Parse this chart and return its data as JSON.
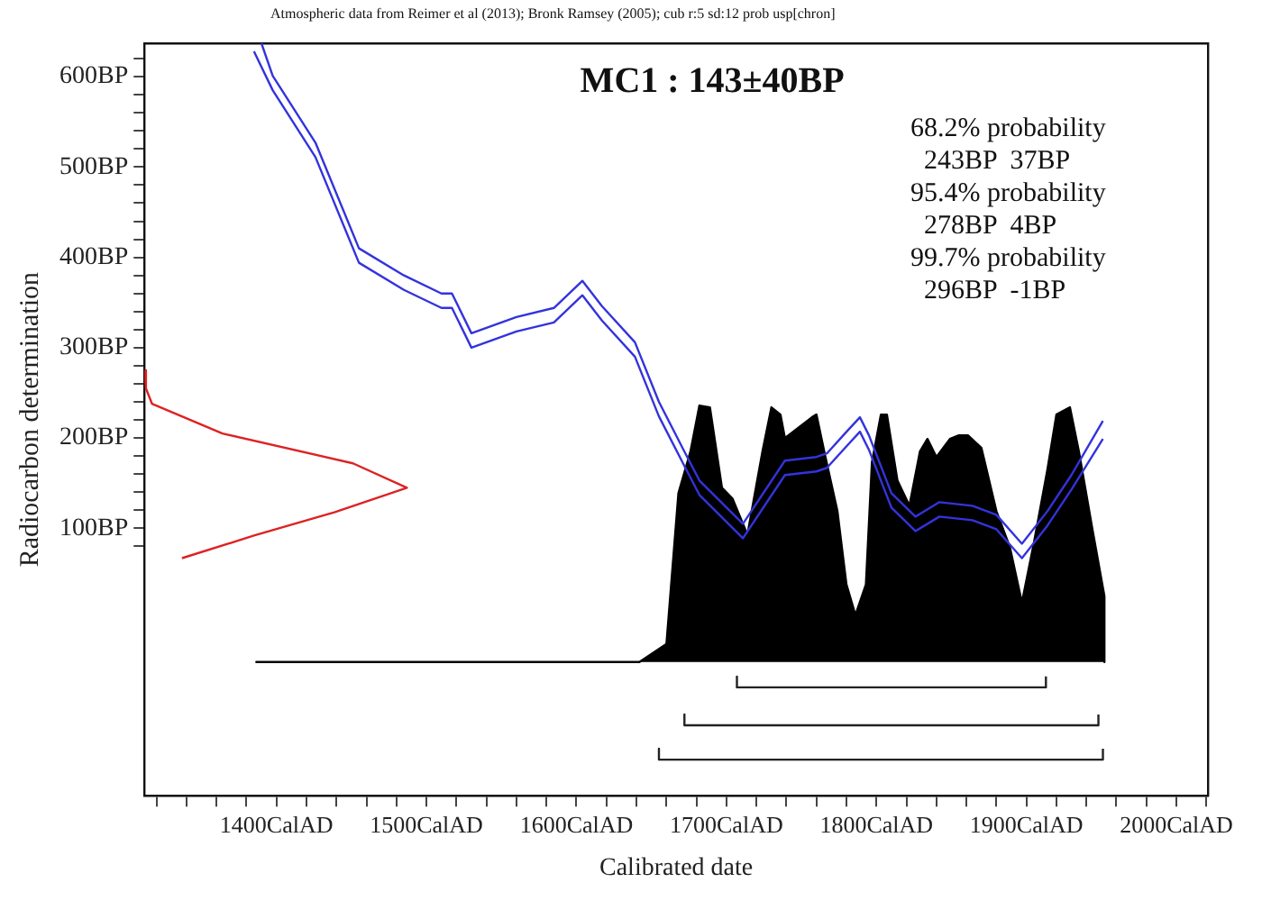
{
  "chart_data": {
    "type": "line",
    "title": "MC1 : 143±40BP",
    "xlabel": "Calibrated date",
    "ylabel": "Radiocarbon determination",
    "annotations": [
      "Atmospheric data from Reimer et al (2013); Bronk Ramsey (2005); cub r:5 sd:12 prob usp[chron]",
      "68.2% probability",
      "  243BP  37BP",
      "95.4% probability",
      "  278BP  4BP",
      "99.7% probability",
      "  296BP  -1BP"
    ],
    "xlim": [
      1312,
      2021
    ],
    "xticks": [
      {
        "value": 1320,
        "label": null
      },
      {
        "value": 1340,
        "label": null
      },
      {
        "value": 1360,
        "label": null
      },
      {
        "value": 1380,
        "label": null
      },
      {
        "value": 1400,
        "label": "1400CalAD"
      },
      {
        "value": 1420,
        "label": null
      },
      {
        "value": 1440,
        "label": null
      },
      {
        "value": 1460,
        "label": null
      },
      {
        "value": 1480,
        "label": null
      },
      {
        "value": 1500,
        "label": "1500CalAD"
      },
      {
        "value": 1520,
        "label": null
      },
      {
        "value": 1540,
        "label": null
      },
      {
        "value": 1560,
        "label": null
      },
      {
        "value": 1580,
        "label": null
      },
      {
        "value": 1600,
        "label": "1600CalAD"
      },
      {
        "value": 1620,
        "label": null
      },
      {
        "value": 1640,
        "label": null
      },
      {
        "value": 1660,
        "label": null
      },
      {
        "value": 1680,
        "label": null
      },
      {
        "value": 1700,
        "label": "1700CalAD"
      },
      {
        "value": 1720,
        "label": null
      },
      {
        "value": 1740,
        "label": null
      },
      {
        "value": 1760,
        "label": null
      },
      {
        "value": 1780,
        "label": null
      },
      {
        "value": 1800,
        "label": "1800CalAD"
      },
      {
        "value": 1820,
        "label": null
      },
      {
        "value": 1840,
        "label": null
      },
      {
        "value": 1860,
        "label": null
      },
      {
        "value": 1880,
        "label": null
      },
      {
        "value": 1900,
        "label": "1900CalAD"
      },
      {
        "value": 1920,
        "label": null
      },
      {
        "value": 1940,
        "label": null
      },
      {
        "value": 1960,
        "label": null
      },
      {
        "value": 1980,
        "label": null
      },
      {
        "value": 2000,
        "label": "2000CalAD"
      },
      {
        "value": 2020,
        "label": null
      }
    ],
    "ylim": [
      -196,
      637
    ],
    "yticks": [
      {
        "value": 80,
        "label": null
      },
      {
        "value": 100,
        "label": "100BP"
      },
      {
        "value": 120,
        "label": null
      },
      {
        "value": 140,
        "label": null
      },
      {
        "value": 160,
        "label": null
      },
      {
        "value": 180,
        "label": null
      },
      {
        "value": 200,
        "label": "200BP"
      },
      {
        "value": 220,
        "label": null
      },
      {
        "value": 240,
        "label": null
      },
      {
        "value": 260,
        "label": null
      },
      {
        "value": 280,
        "label": null
      },
      {
        "value": 300,
        "label": "300BP"
      },
      {
        "value": 320,
        "label": null
      },
      {
        "value": 340,
        "label": null
      },
      {
        "value": 360,
        "label": null
      },
      {
        "value": 380,
        "label": null
      },
      {
        "value": 400,
        "label": "400BP"
      },
      {
        "value": 420,
        "label": null
      },
      {
        "value": 440,
        "label": null
      },
      {
        "value": 460,
        "label": null
      },
      {
        "value": 480,
        "label": null
      },
      {
        "value": 500,
        "label": "500BP"
      },
      {
        "value": 520,
        "label": null
      },
      {
        "value": 540,
        "label": null
      },
      {
        "value": 560,
        "label": null
      },
      {
        "value": 580,
        "label": null
      },
      {
        "value": 600,
        "label": "600BP"
      },
      {
        "value": 620,
        "label": null
      }
    ],
    "grid": false,
    "legend": false,
    "marker": "none",
    "series": [
      {
        "type": "line",
        "color": "#3333dd",
        "x": [
          1390,
          1397.5,
          1426,
          1455,
          1485,
          1510,
          1517,
          1530,
          1560,
          1585,
          1604,
          1617,
          1639,
          1655,
          1672,
          1682,
          1711,
          1739,
          1760,
          1767,
          1779,
          1789,
          1795,
          1810,
          1826,
          1842,
          1864,
          1880,
          1897,
          1914,
          1930,
          1951
        ],
        "values": [
          637,
          601,
          527,
          410,
          380,
          360,
          360,
          316,
          334,
          344,
          374,
          346,
          306,
          240,
          185,
          153,
          105,
          175,
          179,
          183,
          205,
          223,
          203,
          139,
          113,
          129,
          125,
          115,
          83,
          119,
          159,
          219
        ]
      },
      {
        "type": "line",
        "color": "#3333dd",
        "x": [
          1385,
          1397.5,
          1426,
          1455,
          1485,
          1510,
          1517,
          1530,
          1560,
          1585,
          1604,
          1617,
          1639,
          1655,
          1672,
          1682,
          1711,
          1739,
          1760,
          1767,
          1779,
          1789,
          1795,
          1810,
          1826,
          1842,
          1864,
          1880,
          1897,
          1914,
          1930,
          1951
        ],
        "values": [
          628,
          585,
          511,
          394,
          364,
          344,
          344,
          300,
          318,
          328,
          358,
          330,
          290,
          224,
          169,
          137,
          89,
          159,
          163,
          167,
          189,
          207,
          187,
          123,
          97,
          113,
          109,
          99,
          67,
          103,
          143,
          199
        ]
      },
      {
        "type": "line",
        "color": "#dd2222",
        "x": [
          1312,
          1313,
          1317,
          1364,
          1451,
          1487,
          1439,
          1385,
          1337
        ],
        "values": [
          275,
          255,
          238,
          205,
          172,
          145,
          118,
          92,
          67
        ]
      },
      {
        "type": "line",
        "color": "#222222",
        "x": [
          1707,
          1707,
          1913,
          1913
        ],
        "values": [
          -64,
          -76,
          -76,
          -64
        ]
      },
      {
        "type": "line",
        "color": "#222222",
        "x": [
          1672,
          1672,
          1948,
          1948
        ],
        "values": [
          -106,
          -118,
          -118,
          -106
        ]
      },
      {
        "type": "line",
        "color": "#222222",
        "x": [
          1655,
          1655,
          1951,
          1951
        ],
        "values": [
          -144,
          -156,
          -156,
          -144
        ]
      },
      {
        "type": "area",
        "color": "#000000",
        "x": [
          1386,
          1642,
          1660,
          1668,
          1676,
          1682,
          1689,
          1697,
          1704,
          1714,
          1724,
          1730,
          1736,
          1739,
          1757,
          1760,
          1766,
          1774,
          1780,
          1786,
          1793,
          1797,
          1803,
          1807,
          1814,
          1822,
          1829,
          1834,
          1840,
          1849,
          1855,
          1861,
          1870,
          1880,
          1889,
          1897,
          1905,
          1914,
          1920,
          1929,
          1935,
          1944,
          1952,
          1952
        ],
        "values": [
          -48,
          -48,
          -28,
          139,
          185,
          236,
          234,
          145,
          133,
          93,
          185,
          234,
          226,
          200,
          223,
          226,
          179,
          119,
          38,
          4,
          38,
          173,
          226,
          226,
          153,
          125,
          185,
          199,
          179,
          199,
          203,
          203,
          189,
          119,
          79,
          18,
          84,
          165,
          226,
          234,
          185,
          99,
          25,
          -48
        ]
      }
    ]
  }
}
